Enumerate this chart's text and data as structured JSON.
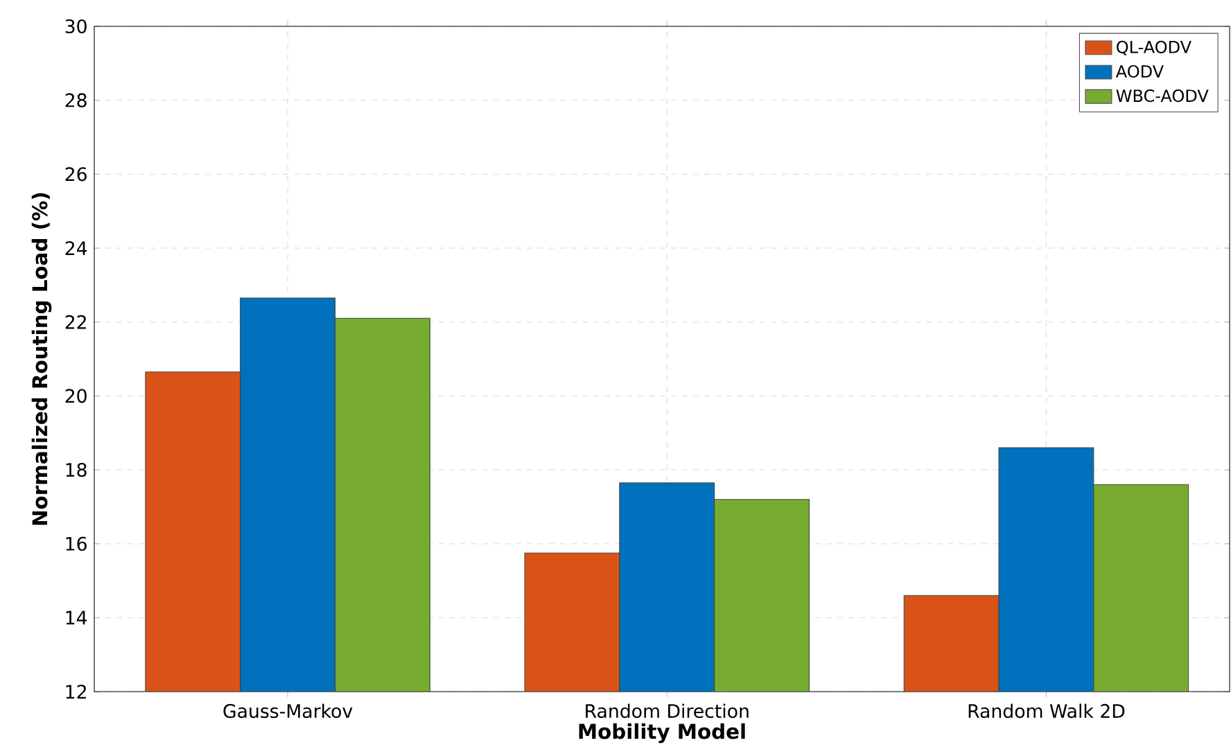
{
  "chart_data": {
    "type": "bar",
    "xlabel": "Mobility Model",
    "ylabel": "Normalized Routing Load (%)",
    "categories": [
      "Gauss-Markov",
      "Random Direction",
      "Random Walk 2D"
    ],
    "series": [
      {
        "name": "QL-AODV",
        "color": "#d95319",
        "values": [
          20.65,
          15.75,
          14.6
        ]
      },
      {
        "name": "AODV",
        "color": "#0072bd",
        "values": [
          22.65,
          17.65,
          18.6
        ]
      },
      {
        "name": "WBC-AODV",
        "color": "#77ac30",
        "values": [
          22.1,
          17.2,
          17.6
        ]
      }
    ],
    "ylim": [
      12,
      30
    ],
    "yticks": [
      12,
      14,
      16,
      18,
      20,
      22,
      24,
      26,
      28,
      30
    ],
    "grid": true,
    "legend": "top right"
  }
}
